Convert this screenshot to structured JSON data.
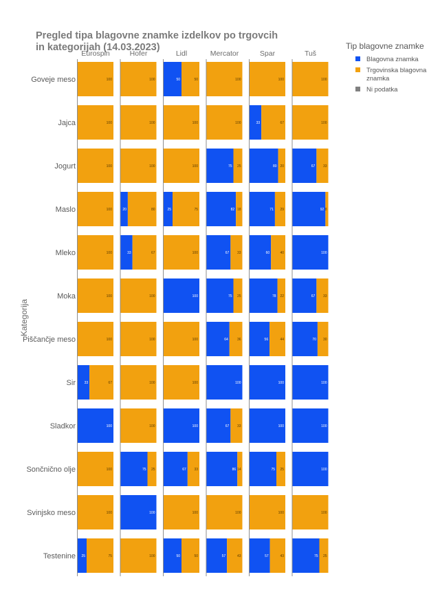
{
  "chart_data": {
    "type": "bar",
    "orientation": "horizontal-stacked-100",
    "facet": "grid",
    "title_lines": [
      "Pregled tipa blagovne znamke izdelkov po trgovcih",
      "in kategorijah (14.03.2023)"
    ],
    "ylabel": "Kategorija",
    "xlim": [
      0,
      100
    ],
    "stores": [
      "Eurospin",
      "Hofer",
      "Lidl",
      "Mercator",
      "Spar",
      "Tuš"
    ],
    "categories": [
      "Goveje meso",
      "Jajca",
      "Jogurt",
      "Maslo",
      "Mleko",
      "Moka",
      "Piščančje meso",
      "Sir",
      "Sladkor",
      "Sončnično olje",
      "Svinjsko meso",
      "Testenine"
    ],
    "legend": {
      "title": "Tip blagovne znamke",
      "placement": "top-right",
      "items": [
        {
          "label_lines": [
            "Blagovna znamka"
          ],
          "color": "#1052f2"
        },
        {
          "label_lines": [
            "Trgovinska blagovna",
            "znamka"
          ],
          "color": "#f2a10f"
        },
        {
          "label_lines": [
            "Ni podatka"
          ],
          "color": "#808080"
        }
      ]
    },
    "series": [
      {
        "name": "Blagovna znamka",
        "color": "#1052f2",
        "values": [
          [
            0,
            0,
            0,
            0,
            0,
            0,
            0,
            33,
            100,
            0,
            0,
            25
          ],
          [
            0,
            0,
            0,
            20,
            33,
            0,
            0,
            0,
            0,
            75,
            100,
            0
          ],
          [
            50,
            0,
            0,
            25,
            0,
            100,
            0,
            0,
            100,
            67,
            0,
            50
          ],
          [
            0,
            0,
            75,
            82,
            67,
            75,
            64,
            100,
            67,
            86,
            0,
            57
          ],
          [
            0,
            33,
            80,
            71,
            60,
            78,
            56,
            100,
            100,
            75,
            0,
            57
          ],
          [
            0,
            0,
            67,
            92,
            100,
            67,
            70,
            100,
            100,
            100,
            0,
            75
          ]
        ]
      },
      {
        "name": "Trgovinska blagovna znamka",
        "color": "#f2a10f",
        "values": [
          [
            100,
            100,
            100,
            100,
            100,
            100,
            100,
            67,
            0,
            100,
            100,
            75
          ],
          [
            100,
            100,
            100,
            80,
            67,
            100,
            100,
            100,
            100,
            25,
            0,
            100
          ],
          [
            50,
            100,
            100,
            75,
            100,
            0,
            100,
            100,
            0,
            33,
            100,
            50
          ],
          [
            100,
            100,
            25,
            18,
            33,
            25,
            36,
            0,
            33,
            14,
            100,
            43
          ],
          [
            100,
            67,
            20,
            29,
            40,
            22,
            44,
            0,
            0,
            25,
            100,
            43
          ],
          [
            100,
            100,
            33,
            8,
            0,
            33,
            30,
            0,
            0,
            0,
            100,
            25
          ]
        ]
      }
    ]
  }
}
